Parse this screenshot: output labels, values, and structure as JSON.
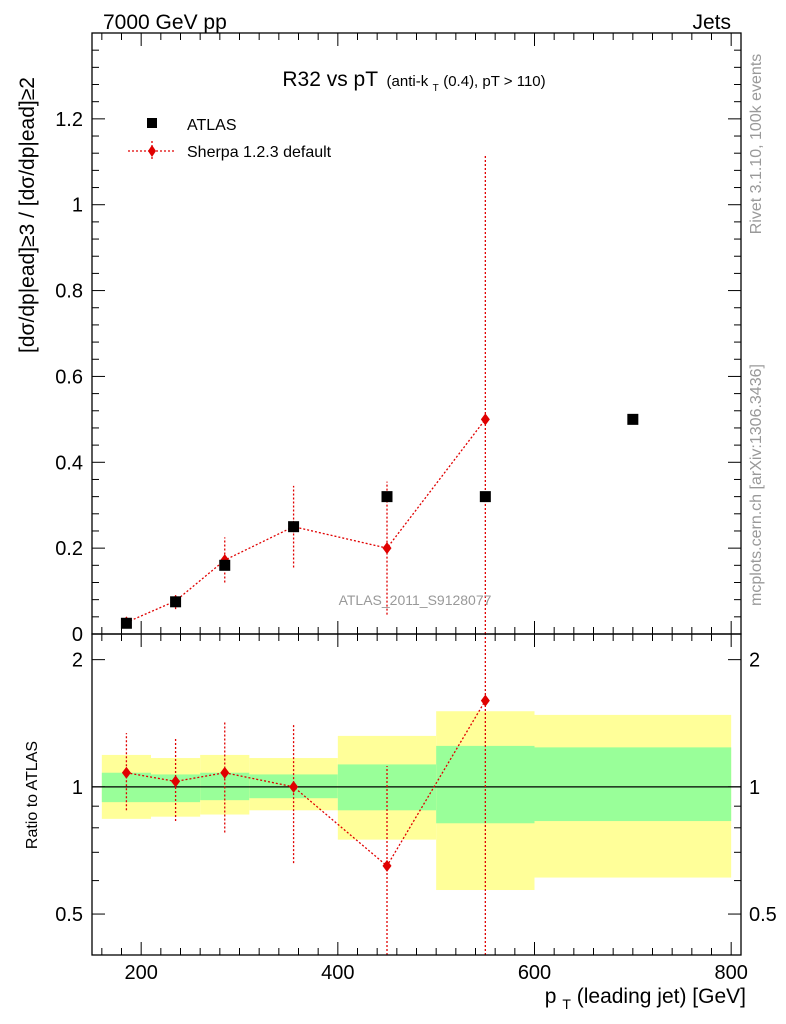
{
  "header": {
    "left": "7000 GeV pp",
    "right": "Jets"
  },
  "side_labels": {
    "rivet": "Rivet 3.1.10,  100k events",
    "mcplots": "mcplots.cern.ch [arXiv:1306.3436]"
  },
  "watermark": "ATLAS_2011_S9128077",
  "chart_data": {
    "type": "scatter",
    "title_main": "R32 vs pT",
    "title_sub_pre": "(anti-k",
    "title_sub_sub": "T",
    "title_sub_post": "(0.4), pT > 110)",
    "xlabel_main": "p",
    "xlabel_sub": "T",
    "xlabel_post": "(leading jet) [GeV]",
    "ylabel_main": "[dσ/dp|ead]≥3 / [dσ/dp|ead]≥2",
    "ylabel_ratio": "Ratio to ATLAS",
    "xlim": [
      150,
      810
    ],
    "ylim_main": [
      0,
      1.4
    ],
    "ylim_ratio": [
      0.4,
      2.3
    ],
    "x_ticks": [
      "200",
      "400",
      "600",
      "800"
    ],
    "y_ticks_main": [
      "0",
      "0.2",
      "0.4",
      "0.6",
      "0.8",
      "1",
      "1.2"
    ],
    "y_ticks_ratio": [
      "0.5",
      "1",
      "2"
    ],
    "legend": [
      {
        "label": "ATLAS",
        "marker": "square",
        "color": "#000000"
      },
      {
        "label": "Sherpa 1.2.3 default",
        "marker": "diamond",
        "color": "#e00000"
      }
    ],
    "atlas": {
      "x": [
        185,
        235,
        285,
        355,
        450,
        550,
        700
      ],
      "y": [
        0.025,
        0.075,
        0.16,
        0.25,
        0.32,
        0.32,
        0.5
      ],
      "x_lo": [
        160,
        210,
        260,
        310,
        400,
        500,
        600
      ],
      "x_hi": [
        210,
        260,
        310,
        400,
        500,
        600,
        800
      ],
      "band_inner_lo": [
        0.92,
        0.92,
        0.93,
        0.94,
        0.88,
        0.82,
        0.83
      ],
      "band_inner_hi": [
        1.08,
        1.07,
        1.08,
        1.07,
        1.13,
        1.25,
        1.24
      ],
      "band_outer_lo": [
        0.84,
        0.85,
        0.86,
        0.88,
        0.75,
        0.57,
        0.61
      ],
      "band_outer_hi": [
        1.19,
        1.17,
        1.19,
        1.17,
        1.32,
        1.51,
        1.48
      ]
    },
    "sherpa": {
      "x": [
        185,
        235,
        285,
        355,
        450,
        550
      ],
      "y": [
        0.027,
        0.077,
        0.172,
        0.25,
        0.2,
        0.5
      ],
      "err_lo": [
        0.015,
        0.058,
        0.12,
        0.155,
        0.045,
        0.0
      ],
      "err_hi": [
        0.038,
        0.095,
        0.225,
        0.345,
        0.355,
        1.115
      ],
      "ratio": [
        1.08,
        1.03,
        1.08,
        1.0,
        0.65,
        1.6
      ],
      "ratio_lo": [
        0.88,
        0.83,
        0.78,
        0.66,
        0.4,
        0.4
      ],
      "ratio_hi": [
        1.34,
        1.3,
        1.42,
        1.4,
        1.12,
        2.3
      ]
    }
  }
}
